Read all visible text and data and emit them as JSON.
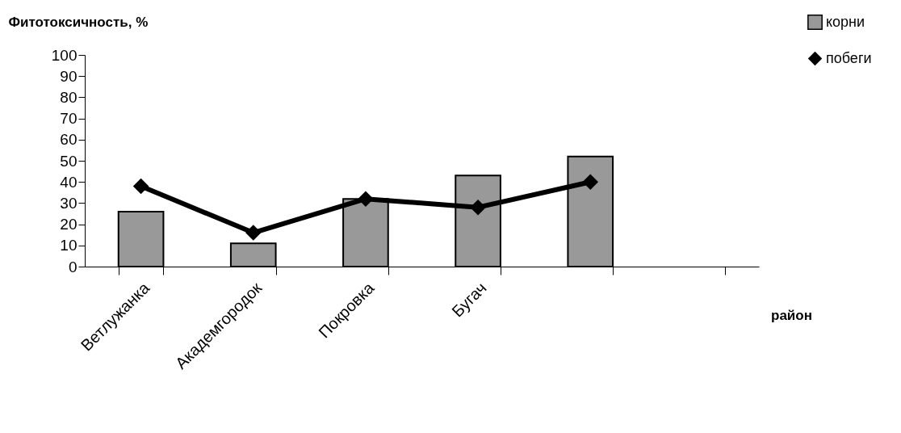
{
  "chart_data": {
    "type": "bar",
    "ylabel": "Фитотоксичность, %",
    "xlabel": "район",
    "categories": [
      "Ветлужанка",
      "Академгородок",
      "Покровка",
      "Бугач",
      null,
      null
    ],
    "series": [
      {
        "name": "корни",
        "type": "bar",
        "color": "#999999",
        "values": [
          26,
          11,
          32,
          43,
          52,
          null
        ]
      },
      {
        "name": "побеги",
        "type": "line",
        "color": "#000000",
        "values": [
          38,
          16,
          32,
          28,
          40,
          null
        ]
      }
    ],
    "ylim": [
      0,
      100
    ],
    "yticks": [
      0,
      10,
      20,
      30,
      40,
      50,
      60,
      70,
      80,
      90,
      100
    ],
    "grid": false,
    "legend": "top right",
    "marker": "diamond",
    "line_style": "solid"
  }
}
